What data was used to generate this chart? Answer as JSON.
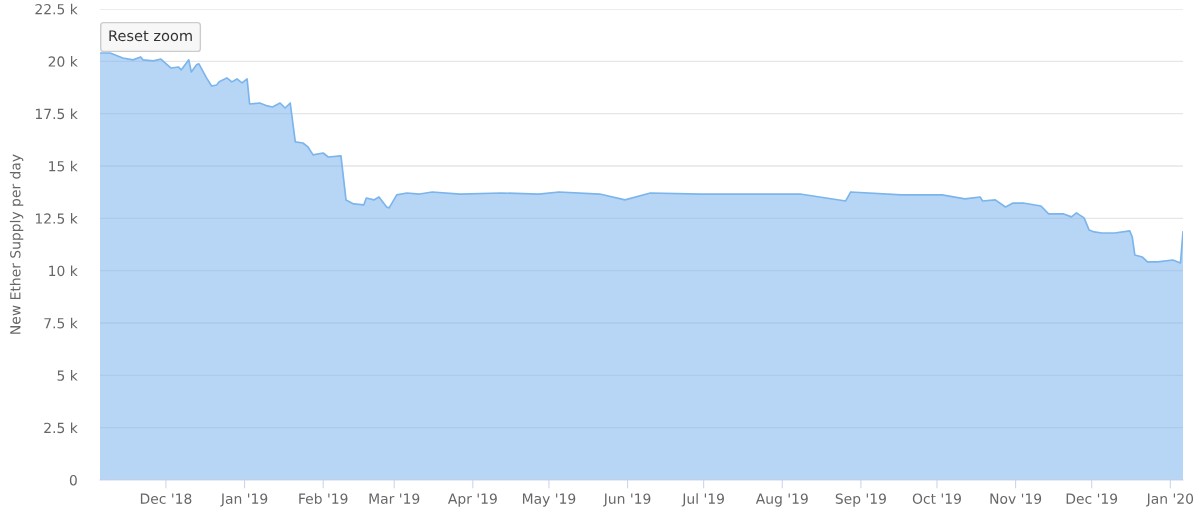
{
  "chart_data": {
    "type": "area",
    "ylabel": "New Ether Supply per day",
    "annotations": [
      "Reset zoom"
    ],
    "x": [
      "2018-11-05",
      "2018-11-09",
      "2018-11-14",
      "2018-11-18",
      "2018-11-21",
      "2018-11-22",
      "2018-11-26",
      "2018-11-29",
      "2018-12-03",
      "2018-12-06",
      "2018-12-07",
      "2018-12-10",
      "2018-12-11",
      "2018-12-13",
      "2018-12-14",
      "2018-12-17",
      "2018-12-19",
      "2018-12-21",
      "2018-12-22",
      "2018-12-25",
      "2018-12-27",
      "2018-12-29",
      "2018-12-31",
      "2019-01-02",
      "2019-01-03",
      "2019-01-07",
      "2019-01-10",
      "2019-01-12",
      "2019-01-15",
      "2019-01-17",
      "2019-01-19",
      "2019-01-21",
      "2019-01-24",
      "2019-01-26",
      "2019-01-28",
      "2019-02-01",
      "2019-02-03",
      "2019-02-08",
      "2019-02-10",
      "2019-02-13",
      "2019-02-17",
      "2019-02-18",
      "2019-02-21",
      "2019-02-23",
      "2019-02-26",
      "2019-02-27",
      "2019-03-02",
      "2019-03-06",
      "2019-03-11",
      "2019-03-16",
      "2019-03-27",
      "2019-04-12",
      "2019-04-27",
      "2019-05-05",
      "2019-05-21",
      "2019-05-31",
      "2019-06-10",
      "2019-06-30",
      "2019-07-19",
      "2019-08-08",
      "2019-08-26",
      "2019-08-28",
      "2019-09-17",
      "2019-10-03",
      "2019-10-12",
      "2019-10-18",
      "2019-10-19",
      "2019-10-24",
      "2019-10-28",
      "2019-10-31",
      "2019-11-04",
      "2019-11-11",
      "2019-11-14",
      "2019-11-20",
      "2019-11-23",
      "2019-11-25",
      "2019-11-28",
      "2019-11-30",
      "2019-12-02",
      "2019-12-05",
      "2019-12-10",
      "2019-12-16",
      "2019-12-17",
      "2019-12-18",
      "2019-12-21",
      "2019-12-23",
      "2019-12-27",
      "2020-01-02",
      "2020-01-05",
      "2020-01-06"
    ],
    "series": [
      {
        "color": "#7cb5ec",
        "values": [
          20400,
          20400,
          20160,
          20070,
          20210,
          20070,
          20020,
          20110,
          19680,
          19730,
          19590,
          20070,
          19490,
          19830,
          19880,
          19210,
          18820,
          18870,
          19020,
          19210,
          19020,
          19160,
          18970,
          19160,
          17960,
          18010,
          17870,
          17820,
          18010,
          17770,
          18010,
          16150,
          16100,
          15910,
          15530,
          15620,
          15430,
          15480,
          13380,
          13190,
          13140,
          13470,
          13380,
          13520,
          13040,
          13000,
          13620,
          13710,
          13660,
          13760,
          13660,
          13710,
          13660,
          13760,
          13660,
          13380,
          13710,
          13660,
          13660,
          13660,
          13330,
          13760,
          13620,
          13620,
          13430,
          13520,
          13330,
          13380,
          13040,
          13230,
          13230,
          13090,
          12710,
          12710,
          12570,
          12760,
          12520,
          11940,
          11850,
          11800,
          11800,
          11900,
          11610,
          10750,
          10650,
          10420,
          10420,
          10510,
          10370,
          11850
        ]
      }
    ],
    "xlim": [
      "2018-11-05",
      "2020-01-06"
    ],
    "xticks": [
      {
        "value": "2018-12-01",
        "label": "Dec '18"
      },
      {
        "value": "2019-01-01",
        "label": "Jan '19"
      },
      {
        "value": "2019-02-01",
        "label": "Feb '19"
      },
      {
        "value": "2019-03-01",
        "label": "Mar '19"
      },
      {
        "value": "2019-04-01",
        "label": "Apr '19"
      },
      {
        "value": "2019-05-01",
        "label": "May '19"
      },
      {
        "value": "2019-06-01",
        "label": "Jun '19"
      },
      {
        "value": "2019-07-01",
        "label": "Jul '19"
      },
      {
        "value": "2019-08-01",
        "label": "Aug '19"
      },
      {
        "value": "2019-09-01",
        "label": "Sep '19"
      },
      {
        "value": "2019-10-01",
        "label": "Oct '19"
      },
      {
        "value": "2019-11-01",
        "label": "Nov '19"
      },
      {
        "value": "2019-12-01",
        "label": "Dec '19"
      },
      {
        "value": "2020-01-01",
        "label": "Jan '20"
      }
    ],
    "ylim": [
      0,
      22500
    ],
    "yticks": [
      0,
      {
        "value": 2500,
        "label": "2.5 k"
      },
      {
        "value": 5000,
        "label": "5 k"
      },
      {
        "value": 7500,
        "label": "7.5 k"
      },
      {
        "value": 10000,
        "label": "10 k"
      },
      {
        "value": 12500,
        "label": "12.5 k"
      },
      {
        "value": 15000,
        "label": "15 k"
      },
      {
        "value": 17500,
        "label": "17.5 k"
      },
      {
        "value": 20000,
        "label": "20 k"
      },
      {
        "value": 22500,
        "label": "22.5 k"
      }
    ],
    "grid": "y",
    "legend": false
  }
}
